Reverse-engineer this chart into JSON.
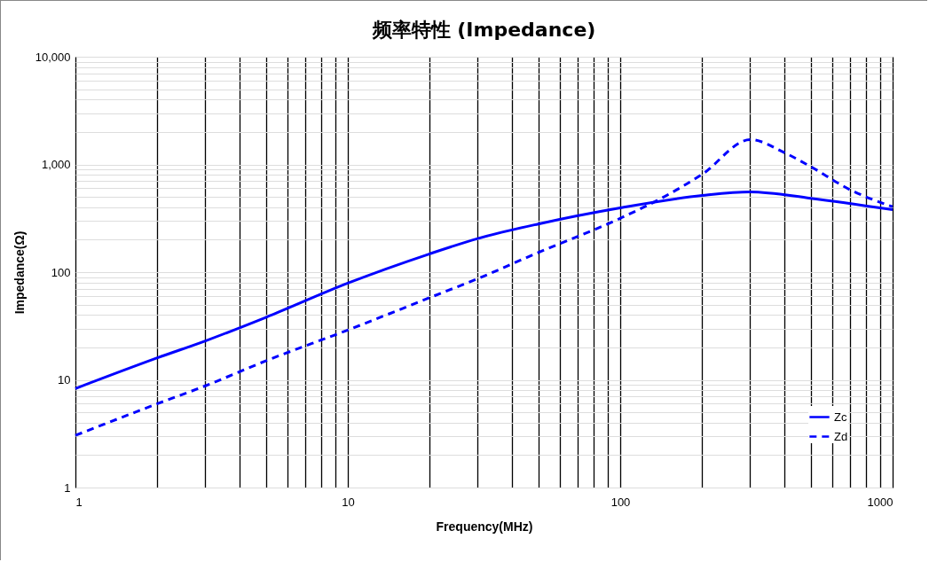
{
  "chart_data": {
    "type": "line",
    "title": "频率特性 (Impedance)",
    "xlabel": "Frequency(MHz)",
    "ylabel": "Impedance(Ω)",
    "log": "xy",
    "grid": true,
    "legend": "bottom right",
    "marker": "none",
    "xlim": [
      1,
      1000
    ],
    "ylim": [
      1,
      10000
    ],
    "xticks": [
      1,
      {
        "value": 2,
        "label": null
      },
      {
        "value": 3,
        "label": null
      },
      {
        "value": 4,
        "label": null
      },
      {
        "value": 5,
        "label": null
      },
      {
        "value": 6,
        "label": null
      },
      {
        "value": 7,
        "label": null
      },
      {
        "value": 8,
        "label": null
      },
      {
        "value": 9,
        "label": null
      },
      10,
      {
        "value": 20,
        "label": null
      },
      {
        "value": 30,
        "label": null
      },
      {
        "value": 40,
        "label": null
      },
      {
        "value": 50,
        "label": null
      },
      {
        "value": 60,
        "label": null
      },
      {
        "value": 70,
        "label": null
      },
      {
        "value": 80,
        "label": null
      },
      {
        "value": 90,
        "label": null
      },
      100,
      {
        "value": 200,
        "label": null
      },
      {
        "value": 300,
        "label": null
      },
      {
        "value": 400,
        "label": null
      },
      {
        "value": 500,
        "label": null
      },
      {
        "value": 600,
        "label": null
      },
      {
        "value": 700,
        "label": null
      },
      {
        "value": 800,
        "label": null
      },
      {
        "value": 900,
        "label": null
      },
      1000
    ],
    "yticks": [
      1,
      {
        "value": 2,
        "label": null
      },
      {
        "value": 3,
        "label": null
      },
      {
        "value": 4,
        "label": null
      },
      {
        "value": 5,
        "label": null
      },
      {
        "value": 6,
        "label": null
      },
      {
        "value": 7,
        "label": null
      },
      {
        "value": 8,
        "label": null
      },
      {
        "value": 9,
        "label": null
      },
      10,
      {
        "value": 20,
        "label": null
      },
      {
        "value": 30,
        "label": null
      },
      {
        "value": 40,
        "label": null
      },
      {
        "value": 50,
        "label": null
      },
      {
        "value": 60,
        "label": null
      },
      {
        "value": 70,
        "label": null
      },
      {
        "value": 80,
        "label": null
      },
      {
        "value": 90,
        "label": null
      },
      100,
      {
        "value": 200,
        "label": null
      },
      {
        "value": 300,
        "label": null
      },
      {
        "value": 400,
        "label": null
      },
      {
        "value": 500,
        "label": null
      },
      {
        "value": 600,
        "label": null
      },
      {
        "value": 700,
        "label": null
      },
      {
        "value": 800,
        "label": null
      },
      {
        "value": 900,
        "label": null
      },
      {
        "value": 1000,
        "label": "1,000"
      },
      {
        "value": 2000,
        "label": null
      },
      {
        "value": 3000,
        "label": null
      },
      {
        "value": 4000,
        "label": null
      },
      {
        "value": 5000,
        "label": null
      },
      {
        "value": 6000,
        "label": null
      },
      {
        "value": 7000,
        "label": null
      },
      {
        "value": 8000,
        "label": null
      },
      {
        "value": 9000,
        "label": null
      },
      {
        "value": 10000,
        "label": "10,000"
      }
    ],
    "series": [
      {
        "name": "Zc",
        "color": "#0000ff",
        "line_style": "solid",
        "x": [
          1,
          2,
          3,
          5,
          10,
          20,
          30,
          50,
          100,
          200,
          300,
          500,
          1000
        ],
        "values": [
          8.3,
          16,
          23,
          38,
          79,
          148,
          205,
          280,
          395,
          515,
          556,
          485,
          380
        ]
      },
      {
        "name": "Zd",
        "color": "#0000ff",
        "line_style": "dashed",
        "x": [
          1,
          2,
          3,
          5,
          10,
          20,
          30,
          50,
          100,
          150,
          200,
          300,
          400,
          500,
          700,
          1000
        ],
        "values": [
          3.05,
          6,
          8.8,
          15,
          29,
          58,
          87,
          152,
          316,
          525,
          810,
          1700,
          1290,
          955,
          580,
          405
        ]
      }
    ]
  }
}
